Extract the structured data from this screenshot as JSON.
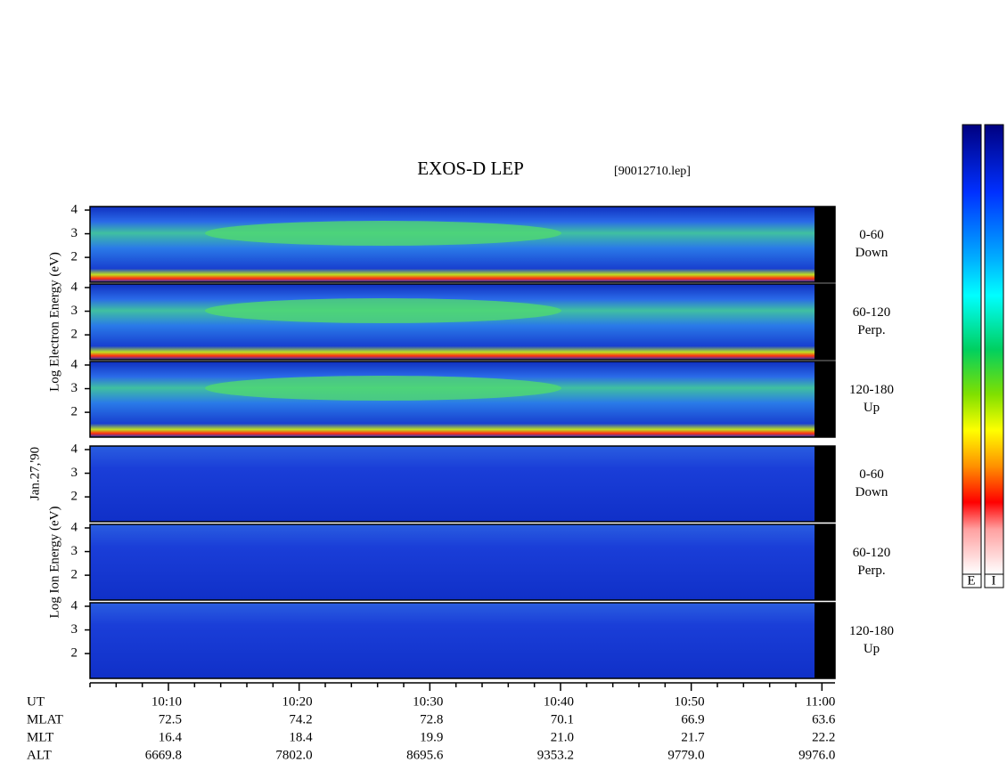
{
  "title": "EXOS-D LEP",
  "file": "[90012710.lep]",
  "date": "Jan.27,'90",
  "chart_data": {
    "type": "spectrogram",
    "xlim": [
      "10:04",
      "11:01"
    ],
    "xticks": [
      "10:10",
      "10:20",
      "10:30",
      "10:40",
      "10:50",
      "11:00"
    ],
    "ylim": [
      0.95,
      4.15
    ],
    "yticks": [
      2,
      3,
      4
    ],
    "groups": [
      {
        "ylabel": "Log Electron Energy (eV)",
        "panels": [
          {
            "label": [
              "0-60",
              "Down"
            ]
          },
          {
            "label": [
              "60-120",
              "Perp."
            ]
          },
          {
            "label": [
              "120-180",
              "Up"
            ]
          }
        ]
      },
      {
        "ylabel": "Log Ion Energy (eV)",
        "panels": [
          {
            "label": [
              "0-60",
              "Down"
            ]
          },
          {
            "label": [
              "60-120",
              "Perp."
            ]
          },
          {
            "label": [
              "120-180",
              "Up"
            ]
          }
        ]
      }
    ]
  },
  "ephemeris": {
    "labels": [
      "UT",
      "MLAT",
      "MLT",
      "ALT"
    ],
    "rows": [
      [
        "72.5",
        "74.2",
        "72.8",
        "70.1",
        "66.9",
        "63.6"
      ],
      [
        "16.4",
        "18.4",
        "19.9",
        "21.0",
        "21.7",
        "22.2"
      ],
      [
        "6669.8",
        "7802.0",
        "8695.6",
        "9353.2",
        "9779.0",
        "9976.0"
      ]
    ]
  },
  "colorbars": [
    "E",
    "I"
  ]
}
